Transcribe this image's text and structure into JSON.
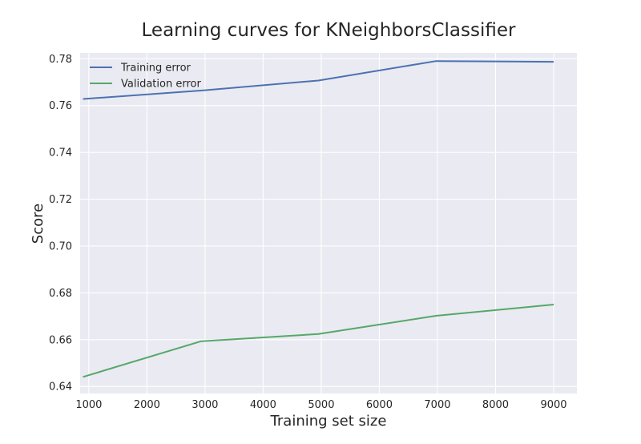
{
  "chart_data": {
    "type": "line",
    "title": "Learning curves for KNeighborsClassifier",
    "xlabel": "Training set size",
    "ylabel": "Score",
    "xlim": [
      850,
      9400
    ],
    "ylim": [
      0.637,
      0.7825
    ],
    "xticks": [
      1000,
      2000,
      3000,
      4000,
      5000,
      6000,
      7000,
      8000,
      9000
    ],
    "yticks": [
      0.64,
      0.66,
      0.68,
      0.7,
      0.72,
      0.74,
      0.76,
      0.78
    ],
    "grid": true,
    "legend_position": "top-left",
    "x": [
      900,
      2925,
      4950,
      6975,
      9000
    ],
    "series": [
      {
        "name": "Training error",
        "color": "#4c72b0",
        "values": [
          0.7628,
          0.7664,
          0.7707,
          0.779,
          0.7787
        ]
      },
      {
        "name": "Validation error",
        "color": "#55a868",
        "values": [
          0.6441,
          0.6593,
          0.6624,
          0.6702,
          0.675
        ]
      }
    ]
  }
}
